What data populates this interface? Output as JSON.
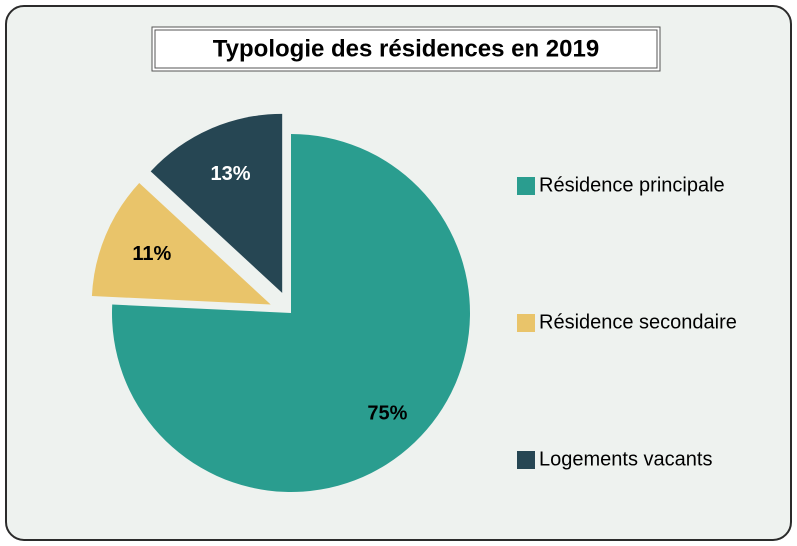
{
  "chart_data": {
    "type": "pie",
    "title": "Typologie des résidences en 2019",
    "categories": [
      "Résidence principale",
      "Résidence secondaire",
      "Logements vacants"
    ],
    "values": [
      75,
      11,
      13
    ],
    "value_labels": [
      "75%",
      "11%",
      "13%"
    ],
    "colors": [
      "#2a9d8f",
      "#e9c46a",
      "#264653"
    ],
    "label_colors": [
      "#000000",
      "#000000",
      "#ffffff"
    ],
    "legend": "right"
  }
}
